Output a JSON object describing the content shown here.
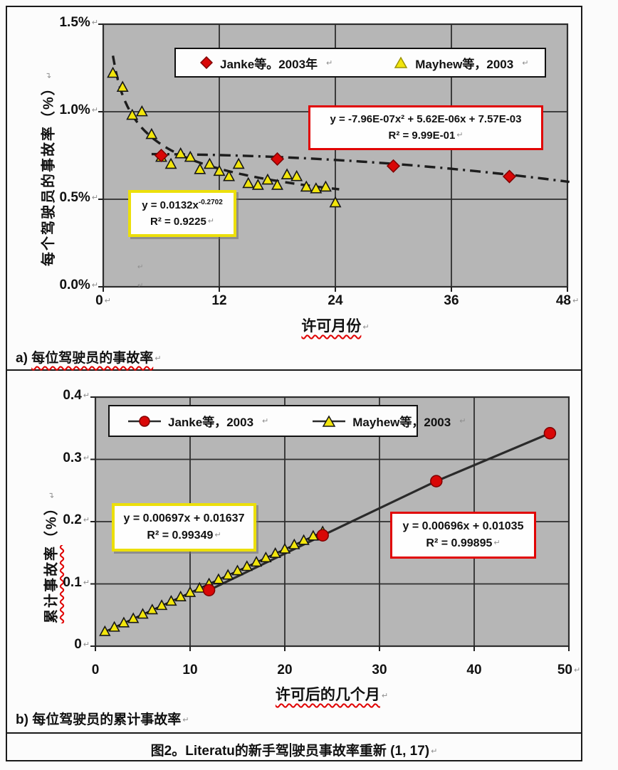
{
  "page": {
    "caption_a_prefix": "a)",
    "caption_a_text": "每位驾驶员的事故率",
    "caption_b_prefix": "b)",
    "caption_b_text": "每位驾驶员的累计事故率",
    "figure_caption_pre": "图2。Literatu的新手驾",
    "figure_caption_post": "驶员事故率重新 (1, 17)",
    "return_mark": "↵"
  },
  "colors": {
    "plot_bg": "#b6b6b6",
    "grid": "#2e2e2e",
    "red": "#d90707",
    "red_dark": "#7e0000",
    "yellow": "#f2e50c",
    "trend": "#1d1d1d"
  },
  "chart_data": [
    {
      "type": "scatter",
      "xlabel": "许可月份",
      "ylabel": "每个驾驶员的事故率（%）",
      "xlim": [
        0,
        48
      ],
      "ylim_pct": [
        0,
        1.5
      ],
      "xticks": [
        0,
        12,
        24,
        36,
        48
      ],
      "yticks": [
        {
          "v": 0,
          "label": "0.0%"
        },
        {
          "v": 0.5,
          "label": "0.5%"
        },
        {
          "v": 1,
          "label": "1.0%"
        },
        {
          "v": 1.5,
          "label": "1.5%"
        }
      ],
      "grid": true,
      "legend_position": "top-inside",
      "legend": [
        {
          "label": "Janke等。2003年",
          "marker": "diamond"
        },
        {
          "label": "Mayhew等，2003",
          "marker": "triangle"
        }
      ],
      "series": [
        {
          "name": "Janke等 2003",
          "marker": "diamond",
          "points": [
            [
              6,
              0.75
            ],
            [
              18,
              0.73
            ],
            [
              30,
              0.69
            ],
            [
              42,
              0.63
            ]
          ],
          "trend": {
            "kind": "poly2",
            "coef_text": "y = -7.96E-07x² + 5.62E-06x + 7.57E-03",
            "r2_text": "R² = 9.99E-01",
            "c2": -7.96e-07,
            "c1": 5.62e-06,
            "c0": 0.00757,
            "x_from": 5,
            "x_to": 48.8,
            "style": "dashdot"
          }
        },
        {
          "name": "Mayhew等 2003",
          "marker": "triangle",
          "points": [
            [
              1,
              1.22
            ],
            [
              2,
              1.14
            ],
            [
              3,
              0.98
            ],
            [
              4,
              1.0
            ],
            [
              5,
              0.87
            ],
            [
              6,
              0.74
            ],
            [
              7,
              0.7
            ],
            [
              8,
              0.76
            ],
            [
              9,
              0.74
            ],
            [
              10,
              0.67
            ],
            [
              11,
              0.7
            ],
            [
              12,
              0.66
            ],
            [
              13,
              0.63
            ],
            [
              14,
              0.7
            ],
            [
              15,
              0.59
            ],
            [
              16,
              0.58
            ],
            [
              17,
              0.61
            ],
            [
              18,
              0.58
            ],
            [
              19,
              0.64
            ],
            [
              20,
              0.63
            ],
            [
              21,
              0.57
            ],
            [
              22,
              0.56
            ],
            [
              23,
              0.57
            ],
            [
              24,
              0.48
            ]
          ],
          "trend": {
            "kind": "power",
            "eq_prefix": "y = 0.0132x",
            "exp_text": "-0.2702",
            "r2_text": "R² = 0.9225",
            "a": 0.0132,
            "b": -0.2702,
            "x_from": 1,
            "x_to": 24.6,
            "style": "dashed"
          }
        }
      ]
    },
    {
      "type": "line",
      "xlabel": "许可后的几个月",
      "ylabel_main": "累计事故率",
      "ylabel_unit": "（%）",
      "xlim": [
        0,
        50
      ],
      "ylim": [
        0,
        0.4
      ],
      "xticks": [
        0,
        10,
        20,
        30,
        40,
        50
      ],
      "yticks": [
        {
          "v": 0,
          "label": "0"
        },
        {
          "v": 0.1,
          "label": "0.1"
        },
        {
          "v": 0.2,
          "label": "0.2"
        },
        {
          "v": 0.3,
          "label": "0.3"
        },
        {
          "v": 0.4,
          "label": "0.4"
        }
      ],
      "grid": true,
      "legend_position": "top-inside",
      "legend": [
        {
          "label": "Janke等，2003",
          "marker": "circle-line"
        },
        {
          "label": "Mayhew等，2003",
          "marker": "triangle-line"
        }
      ],
      "series": [
        {
          "name": "Janke等 2003",
          "marker": "circle",
          "points": [
            [
              12,
              0.09
            ],
            [
              24,
              0.178
            ],
            [
              36,
              0.265
            ],
            [
              48,
              0.342
            ]
          ],
          "fit": {
            "eq": "y = 0.00696x + 0.01035",
            "r2": "R² = 0.99895"
          }
        },
        {
          "name": "Mayhew等 2003",
          "marker": "triangle",
          "slope": 0.00697,
          "intercept": 0.01637,
          "x_from": 1,
          "x_to": 24,
          "fit": {
            "eq": "y = 0.00697x + 0.01637",
            "r2": "R² = 0.99349"
          }
        }
      ]
    }
  ]
}
